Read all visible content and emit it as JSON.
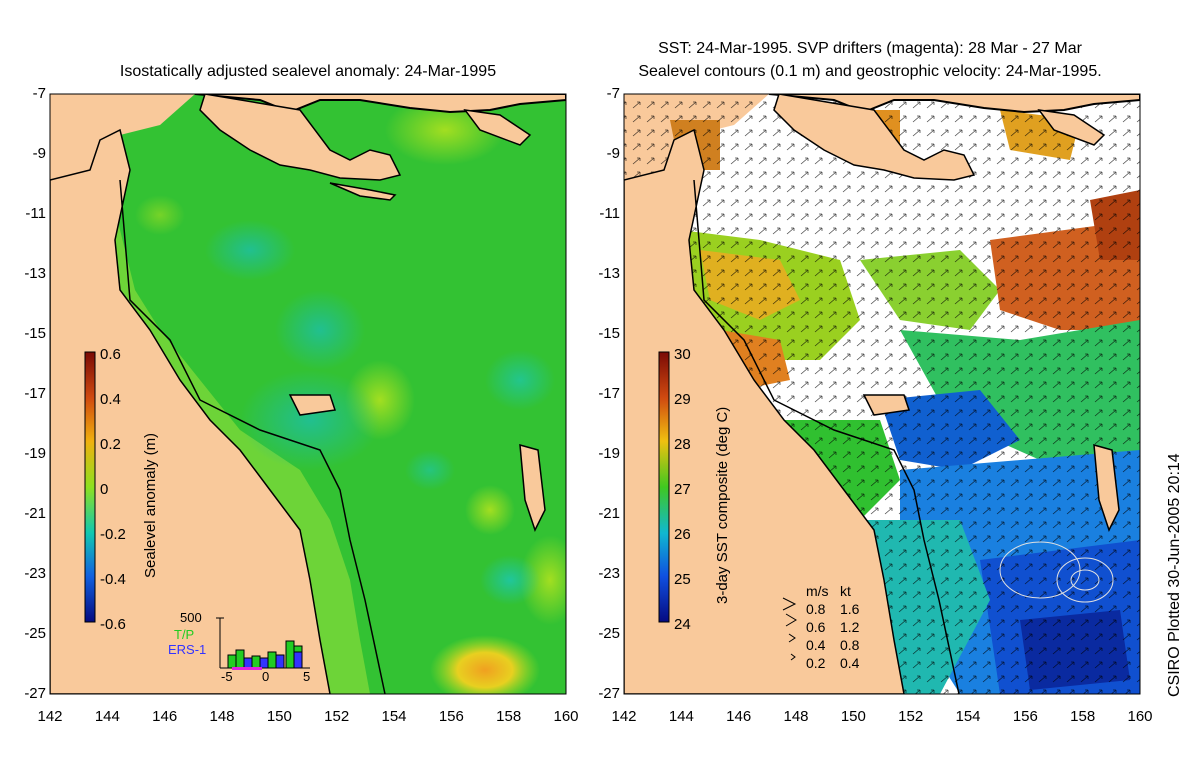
{
  "left_panel": {
    "title": "Isostatically adjusted sealevel anomaly: 24-Mar-1995",
    "colorbar": {
      "label": "Sealevel anomaly (m)",
      "ticks": [
        "0.6",
        "0.4",
        "0.2",
        "0",
        "-0.2",
        "-0.4",
        "-0.6"
      ]
    },
    "histogram": {
      "ymax_label": "500",
      "legend": [
        "T/P",
        "ERS-1"
      ],
      "legend_colors": [
        "#22cc22",
        "#3333ff"
      ],
      "x_ticks": [
        "-5",
        "0",
        "5"
      ]
    }
  },
  "right_panel": {
    "title_line1": "SST: 24-Mar-1995. SVP drifters (magenta): 28 Mar - 27 Mar",
    "title_line2": "Sealevel contours (0.1 m) and geostrophic velocity: 24-Mar-1995.",
    "colorbar": {
      "label": "3-day SST composite (deg C)",
      "ticks": [
        "30",
        "29",
        "28",
        "27",
        "26",
        "25",
        "24"
      ]
    },
    "velocity_legend": {
      "header_ms": "m/s",
      "header_kt": "kt",
      "rows": [
        {
          "ms": "0.8",
          "kt": "1.6"
        },
        {
          "ms": "0.6",
          "kt": "1.2"
        },
        {
          "ms": "0.4",
          "kt": "0.8"
        },
        {
          "ms": "0.2",
          "kt": "0.4"
        }
      ]
    }
  },
  "axes": {
    "x_ticks": [
      "142",
      "144",
      "146",
      "148",
      "150",
      "152",
      "154",
      "156",
      "158",
      "160"
    ],
    "y_ticks": [
      "-7",
      "-9",
      "-11",
      "-13",
      "-15",
      "-17",
      "-19",
      "-21",
      "-23",
      "-25",
      "-27"
    ]
  },
  "credit": "CSIRO Plotted 30-Jun-2005 20:14",
  "colors": {
    "land": "#f9c99b",
    "sea_green": "#33c233",
    "sst_white": "#ffffff"
  }
}
